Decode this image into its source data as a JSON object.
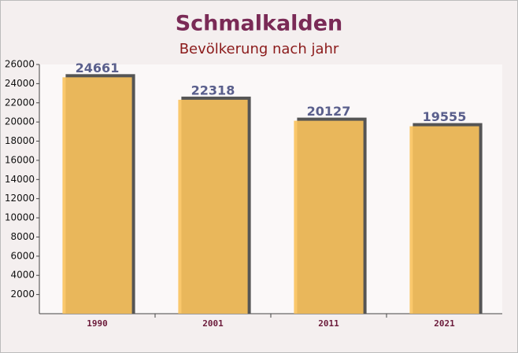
{
  "chart_data": {
    "type": "bar",
    "title": "Schmalkalden",
    "subtitle": "Bevölkerung nach jahr",
    "categories": [
      "1990",
      "2001",
      "2011",
      "2021"
    ],
    "values": [
      24661,
      22318,
      20127,
      19555
    ],
    "color": "#f9c25c",
    "ylim": [
      0,
      26000
    ],
    "yticks": [
      2000,
      4000,
      6000,
      8000,
      10000,
      12000,
      14000,
      16000,
      18000,
      20000,
      22000,
      24000,
      26000
    ],
    "grid": false
  }
}
